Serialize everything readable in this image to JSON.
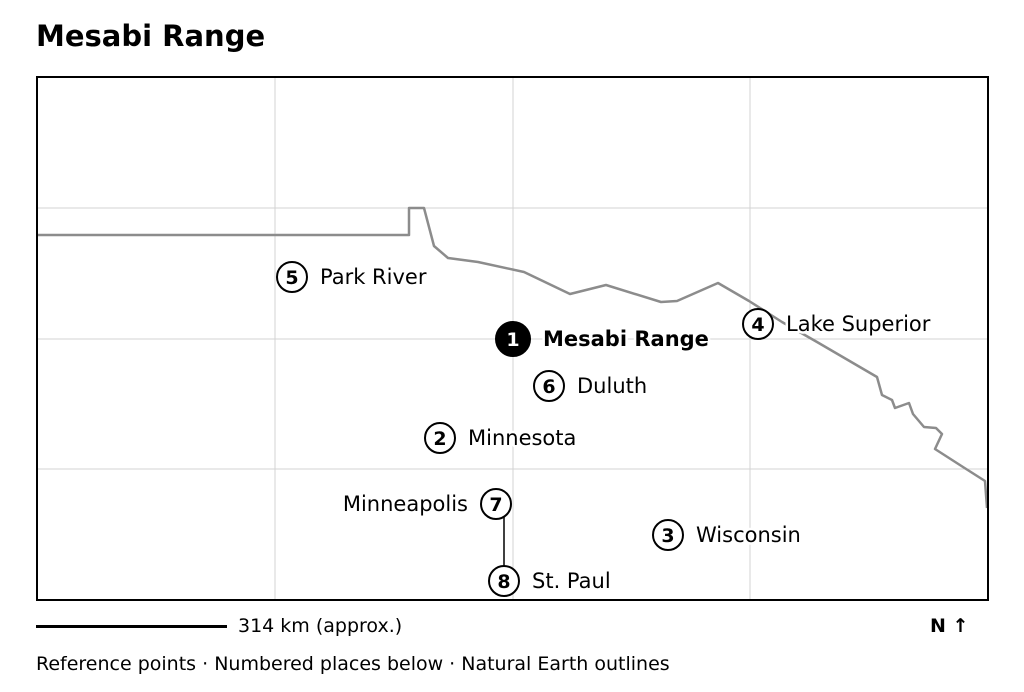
{
  "title": "Mesabi Range",
  "map": {
    "markers": [
      {
        "number": "1",
        "label": "Mesabi Range",
        "primary": true
      },
      {
        "number": "2",
        "label": "Minnesota"
      },
      {
        "number": "3",
        "label": "Wisconsin"
      },
      {
        "number": "4",
        "label": "Lake Superior"
      },
      {
        "number": "5",
        "label": "Park River"
      },
      {
        "number": "6",
        "label": "Duluth"
      },
      {
        "number": "7",
        "label": "Minneapolis"
      },
      {
        "number": "8",
        "label": "St. Paul"
      }
    ]
  },
  "scale": {
    "label": "314 km (approx.)"
  },
  "north": {
    "label": "N ↑"
  },
  "caption": "Reference points · Numbered places below · Natural Earth outlines",
  "colors": {
    "border_line": "#8c8c8c",
    "grid_line": "#d3d3d3",
    "marker_fill_primary": "#000000",
    "marker_fill": "#ffffff"
  }
}
